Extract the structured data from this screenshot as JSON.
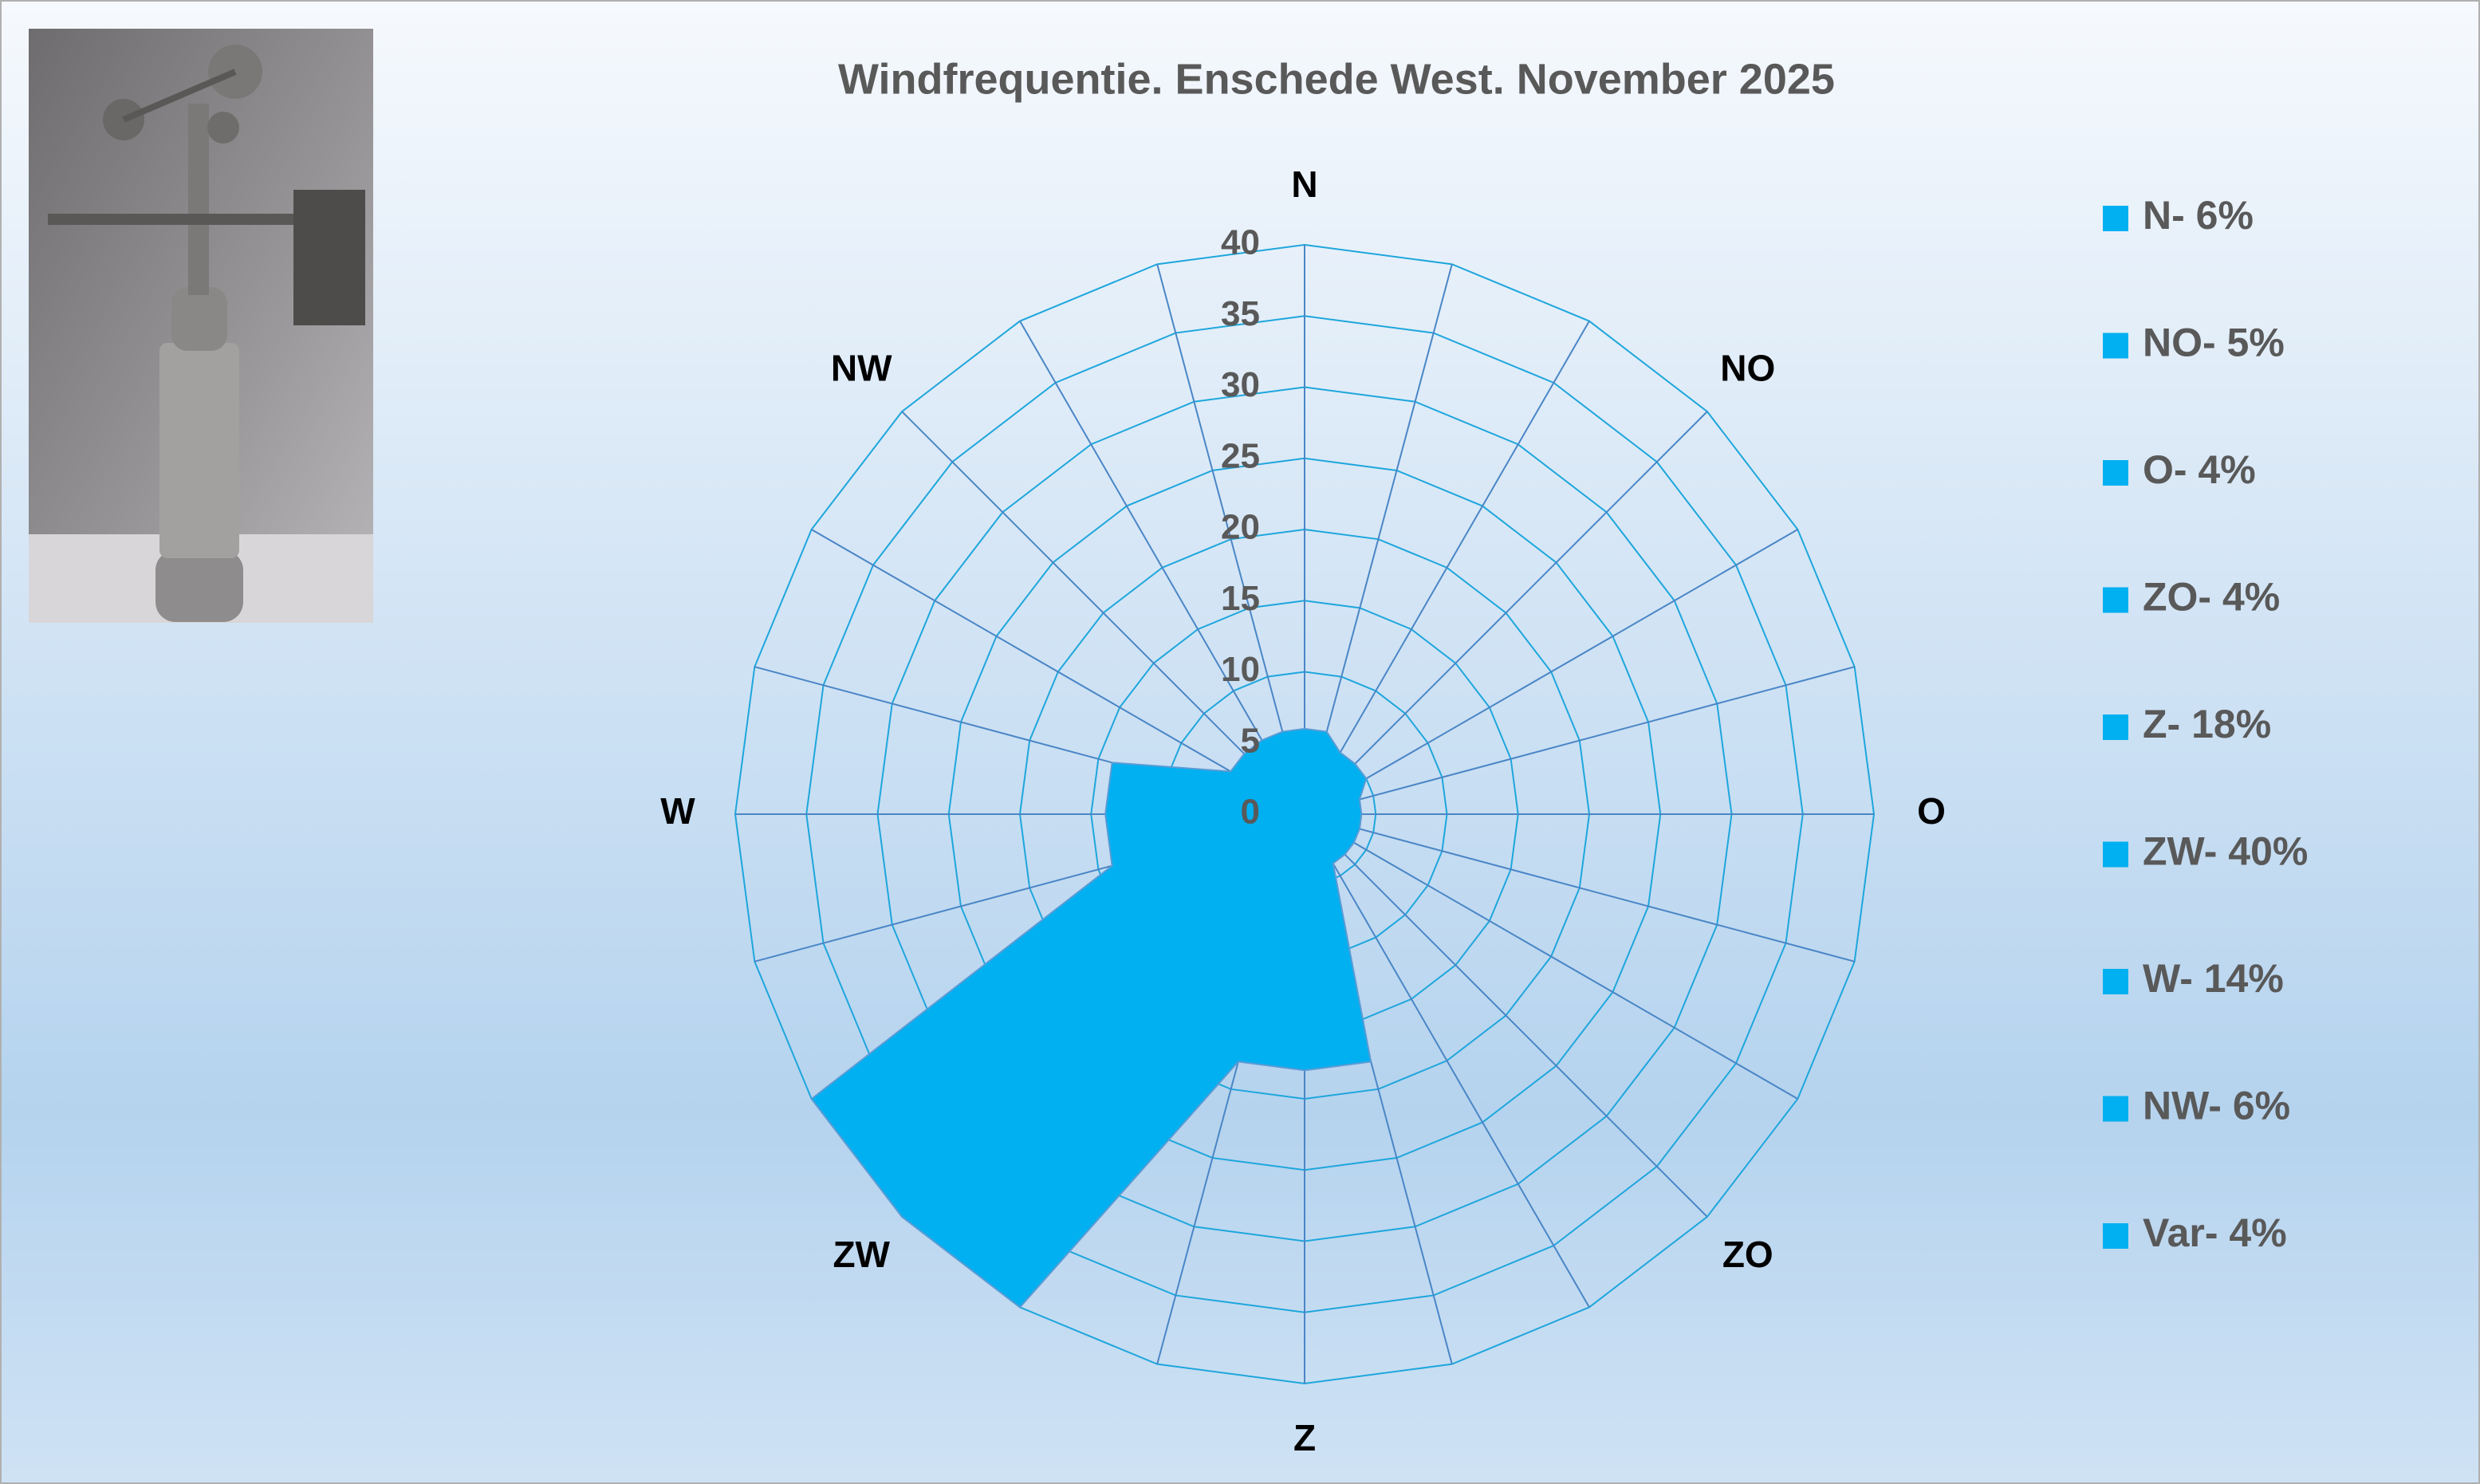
{
  "chart_data": {
    "type": "radar",
    "title": "Windfrequentie. Enschede West. November 2025",
    "categories": [
      "N",
      null,
      null,
      "NO",
      null,
      null,
      "O",
      null,
      null,
      "ZO",
      null,
      null,
      "Z",
      null,
      null,
      "ZW",
      null,
      null,
      "W",
      null,
      null,
      "NW",
      null,
      null
    ],
    "values": [
      6,
      6,
      5,
      5,
      5,
      4,
      4,
      4,
      4,
      4,
      4,
      18,
      18,
      18,
      40,
      40,
      40,
      14,
      14,
      14,
      6,
      6,
      6,
      6
    ],
    "color": "#00b0f0",
    "rlim": [
      0,
      40
    ],
    "rticks": [
      0,
      5,
      10,
      15,
      20,
      25,
      30,
      35,
      40
    ],
    "grid": true,
    "legend": [
      "N- 6%",
      "NO- 5%",
      "O- 4%",
      "ZO- 4%",
      "Z- 18%",
      "ZW- 40%",
      "W- 14%",
      "NW- 6%",
      "Var- 4%"
    ],
    "legend_position": "right"
  }
}
